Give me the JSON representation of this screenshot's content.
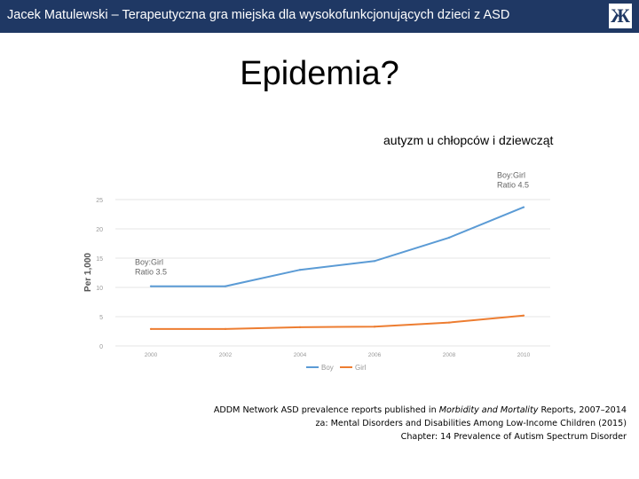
{
  "header": {
    "author": "Jacek Matulewski",
    "separator": " – ",
    "title": "Terapeutyczna gra miejska dla wysokofunkcjonujących dzieci z ASD",
    "logo_icon": "university-logo-icon"
  },
  "slide": {
    "title": "Epidemia?",
    "subtitle": "autyzm u chłopców i dziewcząt"
  },
  "chart_data": {
    "type": "line",
    "x": [
      2000,
      2002,
      2004,
      2006,
      2008,
      2010
    ],
    "x_tick_labels": [
      "2000",
      "2002",
      "2004",
      "2006",
      "2008",
      "2010"
    ],
    "y_ticks": [
      0,
      5,
      10,
      15,
      20,
      25
    ],
    "y_tick_labels": [
      "0",
      "5",
      "10",
      "15",
      "20",
      "25"
    ],
    "ylim": [
      0,
      25
    ],
    "xlim": [
      2000,
      2010
    ],
    "ylabel": "Per 1,000",
    "xlabel": "",
    "grid": true,
    "series": [
      {
        "name": "Boy",
        "color": "#5b9bd5",
        "x": [
          2000,
          2002,
          2004,
          2006,
          2008,
          2010
        ],
        "values": [
          10.2,
          10.2,
          13.0,
          14.5,
          18.5,
          23.7
        ]
      },
      {
        "name": "Girl",
        "color": "#ed7d31",
        "x": [
          2000,
          2002,
          2004,
          2006,
          2008,
          2010
        ],
        "values": [
          2.9,
          2.9,
          3.2,
          3.3,
          4.0,
          5.2
        ]
      }
    ],
    "annotations": [
      {
        "lines": [
          "Boy:Girl",
          "Ratio 3.5"
        ],
        "anchor": "start of Boy series"
      },
      {
        "lines": [
          "Boy:Girl",
          "Ratio 4.5"
        ],
        "anchor": "end of Boy series"
      }
    ],
    "legend": [
      "Boy",
      "Girl"
    ],
    "legend_position": "bottom"
  },
  "caption": {
    "line1_prefix": "ADDM Network ASD prevalence reports published in ",
    "line1_italic": "Morbidity and Mortality",
    "line1_suffix": " Reports, 2007–2014",
    "line2": "za: Mental Disorders and Disabilities Among Low-Income Children (2015)",
    "line3": "Chapter: 14 Prevalence of Autism Spectrum Disorder"
  }
}
